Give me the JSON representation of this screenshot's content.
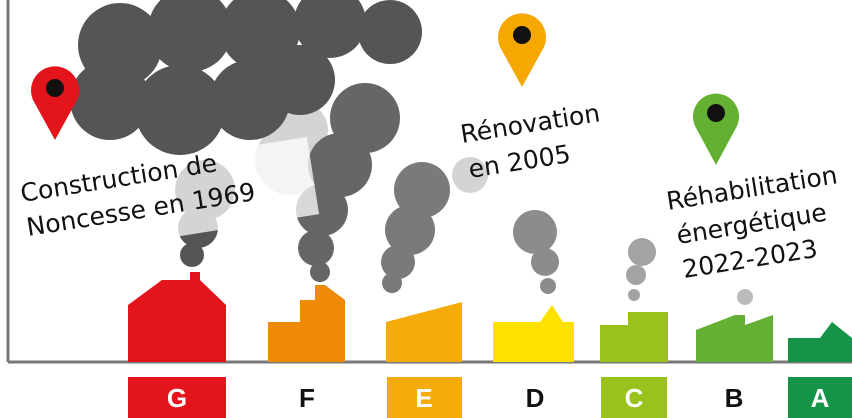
{
  "annotations": [
    {
      "lines": [
        "Construction de",
        "Noncesse en 1969"
      ]
    },
    {
      "lines": [
        "Rénovation",
        "en 2005"
      ]
    },
    {
      "lines": [
        "Réhabilitation",
        "énergétique",
        "2022-2023"
      ]
    }
  ],
  "classes": [
    "G",
    "F",
    "E",
    "D",
    "C",
    "B",
    "A"
  ]
}
